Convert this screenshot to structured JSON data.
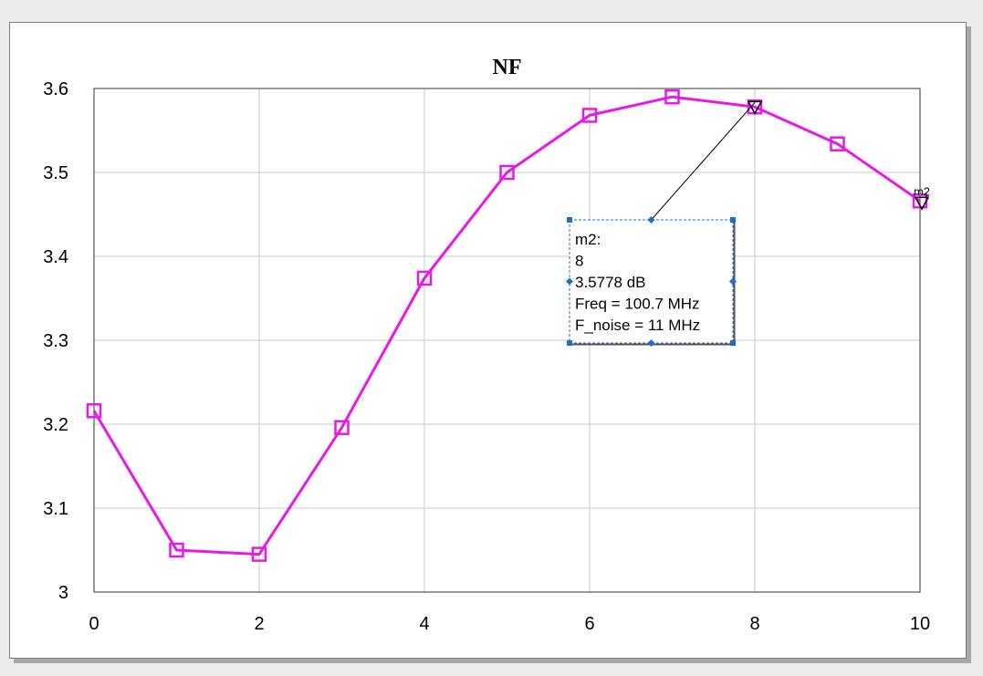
{
  "chart_data": {
    "type": "line",
    "title": "NF",
    "xlabel": "",
    "ylabel": "",
    "xlim": [
      0,
      10
    ],
    "ylim": [
      3,
      3.6
    ],
    "grid": true,
    "x_ticks": [
      0,
      2,
      4,
      6,
      8,
      10
    ],
    "x_tick_labels": [
      "0",
      "2",
      "4",
      "6",
      "8",
      "10"
    ],
    "y_ticks": [
      3,
      3.1,
      3.2,
      3.3,
      3.4,
      3.5,
      3.6
    ],
    "y_tick_labels": [
      "3",
      "3.1",
      "3.2",
      "3.3",
      "3.4",
      "3.5",
      "3.6"
    ],
    "series": [
      {
        "name": "NF",
        "color": "#e619e6",
        "marker": "square",
        "x": [
          0,
          1,
          2,
          3,
          4,
          5,
          6,
          7,
          8,
          9,
          10
        ],
        "values": [
          3.216,
          3.05,
          3.045,
          3.196,
          3.374,
          3.5,
          3.568,
          3.59,
          3.578,
          3.534,
          3.466
        ]
      }
    ],
    "markers": [
      {
        "name": "m2",
        "x": 8,
        "y": 3.5778,
        "lines": [
          "m2:",
          "8",
          "3.5778 dB",
          "Freq = 100.7 MHz",
          "F_noise = 11 MHz"
        ]
      },
      {
        "name": "m2",
        "x": 10,
        "y": 3.466,
        "label": "m2"
      }
    ]
  }
}
